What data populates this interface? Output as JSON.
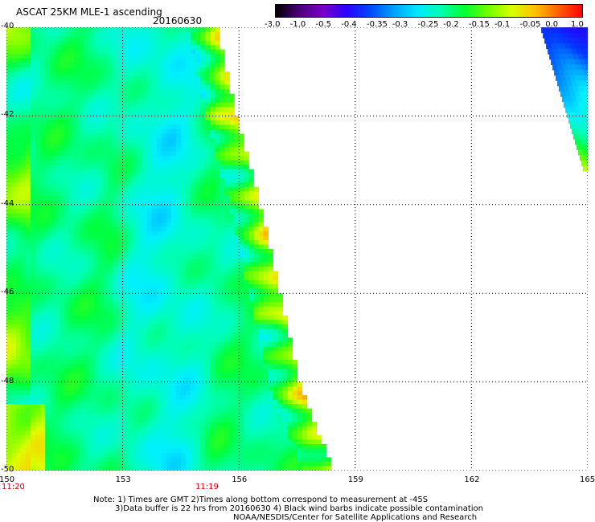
{
  "header": {
    "title": "ASCAT 25KM MLE-1 ascending",
    "date": "20160630"
  },
  "colorbar": {
    "labels": [
      "-3.0",
      "-1.0",
      "-0.5",
      "-0.4",
      "-0.35",
      "-0.3",
      "-0.25",
      "-0.2",
      "-0.15",
      "-0.1",
      "-0.05",
      "0.0",
      "1.0"
    ],
    "colors": [
      "#000000",
      "#4a007a",
      "#7a00c8",
      "#2a00ff",
      "#0048ff",
      "#00a0ff",
      "#00e8ff",
      "#00ffb0",
      "#00ff30",
      "#70ff00",
      "#d8ff00",
      "#ffc000",
      "#ff6000",
      "#ff0000"
    ]
  },
  "chart_data": {
    "type": "heatmap",
    "title": "ASCAT 25KM MLE-1 ascending",
    "subtitle": "20160630",
    "xlabel": "",
    "ylabel": "",
    "xlim": [
      150,
      165
    ],
    "ylim": [
      -50,
      -40
    ],
    "x_ticks": [
      "150",
      "153",
      "156",
      "159",
      "162",
      "165"
    ],
    "y_ticks": [
      "-40",
      "-42",
      "-44",
      "-46",
      "-48",
      "-50"
    ],
    "grid": true,
    "colorbar_range": [
      -3.0,
      1.0
    ],
    "swaths": [
      {
        "name": "main",
        "lon_range": [
          150,
          158.5
        ],
        "lat_range": [
          -50,
          -40
        ],
        "typical_value": -0.2,
        "east_edge": [
          [
            -40,
            155.4
          ],
          [
            -42,
            155.9
          ],
          [
            -44,
            156.5
          ],
          [
            -46,
            157.0
          ],
          [
            -48,
            157.5
          ],
          [
            -50,
            158.4
          ]
        ]
      },
      {
        "name": "northeast",
        "lon_range": [
          163.8,
          165
        ],
        "lat_range": [
          -43.2,
          -40
        ],
        "typical_value": -0.45
      }
    ],
    "time_labels": [
      {
        "lon": 150,
        "text": "11:20"
      },
      {
        "lon": 155,
        "text": "11:19"
      }
    ]
  },
  "notes": {
    "line1": "Note: 1) Times are GMT 2)Times along bottom correspond to measurement at -45S",
    "line2": "3)Data buffer is 22 hrs from 20160630 4) Black wind barbs indicate possible contamination",
    "line3": "NOAA/NESDIS/Center for Satellite Applications and Research"
  },
  "colors": {
    "grid": "#000000",
    "time_label": "#cc0000"
  }
}
